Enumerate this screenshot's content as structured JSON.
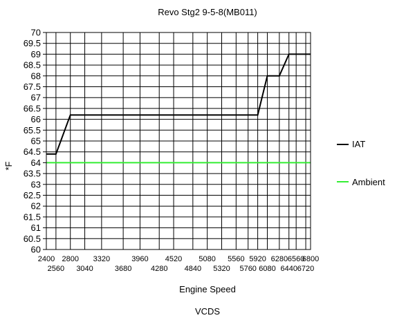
{
  "chart_data": {
    "type": "line",
    "title": "Revo Stg2 9-5-8(MB011)",
    "subtitle": "VCDS",
    "xlabel": "Engine Speed",
    "ylabel": "*F",
    "xlim": [
      2400,
      6800
    ],
    "ylim": [
      60,
      70
    ],
    "x_ticks": [
      2400,
      2560,
      2800,
      3040,
      3320,
      3680,
      3960,
      4280,
      4520,
      4840,
      5080,
      5320,
      5560,
      5760,
      5920,
      6080,
      6280,
      6440,
      6560,
      6720,
      6800
    ],
    "x_tick_labels_top": [
      "2400",
      "2800",
      "3320",
      "3960",
      "4520",
      "5080",
      "5560",
      "5920",
      "6280",
      "6560",
      "6800"
    ],
    "x_tick_labels_bottom": [
      "2560",
      "3040",
      "3680",
      "4280",
      "4840",
      "5320",
      "5760",
      "6080",
      "6440",
      "6720"
    ],
    "y_ticks": [
      "60",
      "60.5",
      "61",
      "61.5",
      "62",
      "62.5",
      "63",
      "63.5",
      "64",
      "64.5",
      "65",
      "65.5",
      "66",
      "66.5",
      "67",
      "67.5",
      "68",
      "68.5",
      "69",
      "69.5",
      "70"
    ],
    "grid": true,
    "legend_position": "right",
    "series": [
      {
        "name": "IAT",
        "color": "#000000",
        "x": [
          2400,
          2560,
          2800,
          5920,
          6080,
          6280,
          6440,
          6800
        ],
        "y": [
          64.4,
          64.4,
          66.2,
          66.2,
          68.0,
          68.0,
          69.0,
          69.0
        ]
      },
      {
        "name": "Ambient",
        "color": "#33ee33",
        "x": [
          2400,
          6800
        ],
        "y": [
          64,
          64
        ]
      }
    ]
  }
}
